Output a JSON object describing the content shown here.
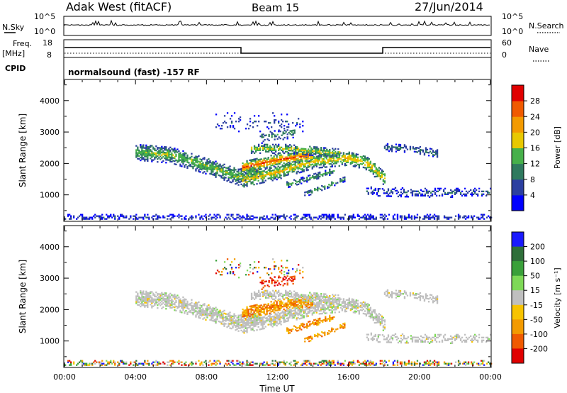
{
  "header": {
    "site": "Adak West (fitACF)",
    "beam": "Beam 15",
    "date": "27/Jun/2014"
  },
  "noise_panel": {
    "left_label": "N.Sky",
    "right_label": "N.Search",
    "left_ticks": [
      "10^5",
      "10^0"
    ],
    "right_ticks": [
      "10^5",
      "10^0"
    ]
  },
  "freq_panel": {
    "left_label_line1": "Freq.",
    "left_label_line2": "[MHz]",
    "right_label": "Nave",
    "left_ticks": [
      "18",
      "8"
    ],
    "right_ticks": [
      "60",
      "0"
    ]
  },
  "cpid": {
    "label": "CPID",
    "value": "normalsound (fast) -157 RF"
  },
  "colors": {
    "power_scale": [
      "#0000ff",
      "#2b3fa0",
      "#2f7a5e",
      "#46b04a",
      "#e8c800",
      "#f39a00",
      "#f05a00",
      "#e00000"
    ],
    "velocity_scale": [
      "#1a1aff",
      "#2f6f3a",
      "#3aa03a",
      "#7ed957",
      "#bfbfbf",
      "#f7c300",
      "#f39a00",
      "#f05a00",
      "#e00000"
    ],
    "ground_scatter": "#bfbfbf"
  },
  "chart_data": [
    {
      "type": "heatmap",
      "name": "power",
      "x_ticks": [
        "00:00",
        "04:00",
        "08:00",
        "12:00",
        "16:00",
        "20:00",
        "00:00"
      ],
      "y_ticks": [
        "1000",
        "2000",
        "3000",
        "4000"
      ],
      "ylim": [
        180,
        4650
      ],
      "ylabel": "Slant Range [km]",
      "colorbar_label": "Power [dB]",
      "colorbar_ticks": [
        "4",
        "8",
        "12",
        "16",
        "20",
        "24",
        "28"
      ],
      "colorbar_range": [
        0,
        32
      ]
    },
    {
      "type": "heatmap",
      "name": "velocity",
      "x_ticks": [
        "00:00",
        "04:00",
        "08:00",
        "12:00",
        "16:00",
        "20:00",
        "00:00"
      ],
      "y_ticks": [
        "1000",
        "2000",
        "3000",
        "4000"
      ],
      "ylim": [
        180,
        4650
      ],
      "ylabel": "Slant Range [km]",
      "xlabel": "Time UT",
      "colorbar_label": "Velocity [m s⁻¹]",
      "colorbar_ticks": [
        "200",
        "100",
        "50",
        "15",
        "-15",
        "-50",
        "-100",
        "-200"
      ]
    }
  ]
}
